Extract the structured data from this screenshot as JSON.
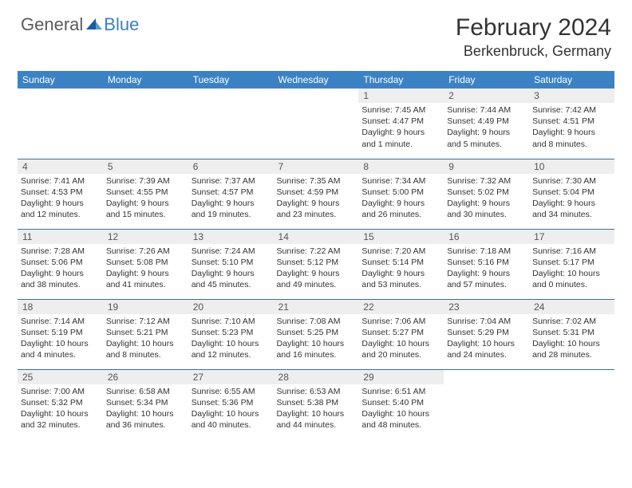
{
  "logo": {
    "text1": "General",
    "text2": "Blue"
  },
  "title": "February 2024",
  "location": "Berkenbruck, Germany",
  "colors": {
    "header_bg": "#3b82c4",
    "header_text": "#ffffff",
    "daynum_bg": "#eeeeee",
    "border": "#3b6fa0",
    "logo_gray": "#5a5a5a",
    "logo_blue": "#3b7fc4"
  },
  "weekdays": [
    "Sunday",
    "Monday",
    "Tuesday",
    "Wednesday",
    "Thursday",
    "Friday",
    "Saturday"
  ],
  "weeks": [
    [
      null,
      null,
      null,
      null,
      {
        "n": "1",
        "sr": "Sunrise: 7:45 AM",
        "ss": "Sunset: 4:47 PM",
        "d1": "Daylight: 9 hours",
        "d2": "and 1 minute."
      },
      {
        "n": "2",
        "sr": "Sunrise: 7:44 AM",
        "ss": "Sunset: 4:49 PM",
        "d1": "Daylight: 9 hours",
        "d2": "and 5 minutes."
      },
      {
        "n": "3",
        "sr": "Sunrise: 7:42 AM",
        "ss": "Sunset: 4:51 PM",
        "d1": "Daylight: 9 hours",
        "d2": "and 8 minutes."
      }
    ],
    [
      {
        "n": "4",
        "sr": "Sunrise: 7:41 AM",
        "ss": "Sunset: 4:53 PM",
        "d1": "Daylight: 9 hours",
        "d2": "and 12 minutes."
      },
      {
        "n": "5",
        "sr": "Sunrise: 7:39 AM",
        "ss": "Sunset: 4:55 PM",
        "d1": "Daylight: 9 hours",
        "d2": "and 15 minutes."
      },
      {
        "n": "6",
        "sr": "Sunrise: 7:37 AM",
        "ss": "Sunset: 4:57 PM",
        "d1": "Daylight: 9 hours",
        "d2": "and 19 minutes."
      },
      {
        "n": "7",
        "sr": "Sunrise: 7:35 AM",
        "ss": "Sunset: 4:59 PM",
        "d1": "Daylight: 9 hours",
        "d2": "and 23 minutes."
      },
      {
        "n": "8",
        "sr": "Sunrise: 7:34 AM",
        "ss": "Sunset: 5:00 PM",
        "d1": "Daylight: 9 hours",
        "d2": "and 26 minutes."
      },
      {
        "n": "9",
        "sr": "Sunrise: 7:32 AM",
        "ss": "Sunset: 5:02 PM",
        "d1": "Daylight: 9 hours",
        "d2": "and 30 minutes."
      },
      {
        "n": "10",
        "sr": "Sunrise: 7:30 AM",
        "ss": "Sunset: 5:04 PM",
        "d1": "Daylight: 9 hours",
        "d2": "and 34 minutes."
      }
    ],
    [
      {
        "n": "11",
        "sr": "Sunrise: 7:28 AM",
        "ss": "Sunset: 5:06 PM",
        "d1": "Daylight: 9 hours",
        "d2": "and 38 minutes."
      },
      {
        "n": "12",
        "sr": "Sunrise: 7:26 AM",
        "ss": "Sunset: 5:08 PM",
        "d1": "Daylight: 9 hours",
        "d2": "and 41 minutes."
      },
      {
        "n": "13",
        "sr": "Sunrise: 7:24 AM",
        "ss": "Sunset: 5:10 PM",
        "d1": "Daylight: 9 hours",
        "d2": "and 45 minutes."
      },
      {
        "n": "14",
        "sr": "Sunrise: 7:22 AM",
        "ss": "Sunset: 5:12 PM",
        "d1": "Daylight: 9 hours",
        "d2": "and 49 minutes."
      },
      {
        "n": "15",
        "sr": "Sunrise: 7:20 AM",
        "ss": "Sunset: 5:14 PM",
        "d1": "Daylight: 9 hours",
        "d2": "and 53 minutes."
      },
      {
        "n": "16",
        "sr": "Sunrise: 7:18 AM",
        "ss": "Sunset: 5:16 PM",
        "d1": "Daylight: 9 hours",
        "d2": "and 57 minutes."
      },
      {
        "n": "17",
        "sr": "Sunrise: 7:16 AM",
        "ss": "Sunset: 5:17 PM",
        "d1": "Daylight: 10 hours",
        "d2": "and 0 minutes."
      }
    ],
    [
      {
        "n": "18",
        "sr": "Sunrise: 7:14 AM",
        "ss": "Sunset: 5:19 PM",
        "d1": "Daylight: 10 hours",
        "d2": "and 4 minutes."
      },
      {
        "n": "19",
        "sr": "Sunrise: 7:12 AM",
        "ss": "Sunset: 5:21 PM",
        "d1": "Daylight: 10 hours",
        "d2": "and 8 minutes."
      },
      {
        "n": "20",
        "sr": "Sunrise: 7:10 AM",
        "ss": "Sunset: 5:23 PM",
        "d1": "Daylight: 10 hours",
        "d2": "and 12 minutes."
      },
      {
        "n": "21",
        "sr": "Sunrise: 7:08 AM",
        "ss": "Sunset: 5:25 PM",
        "d1": "Daylight: 10 hours",
        "d2": "and 16 minutes."
      },
      {
        "n": "22",
        "sr": "Sunrise: 7:06 AM",
        "ss": "Sunset: 5:27 PM",
        "d1": "Daylight: 10 hours",
        "d2": "and 20 minutes."
      },
      {
        "n": "23",
        "sr": "Sunrise: 7:04 AM",
        "ss": "Sunset: 5:29 PM",
        "d1": "Daylight: 10 hours",
        "d2": "and 24 minutes."
      },
      {
        "n": "24",
        "sr": "Sunrise: 7:02 AM",
        "ss": "Sunset: 5:31 PM",
        "d1": "Daylight: 10 hours",
        "d2": "and 28 minutes."
      }
    ],
    [
      {
        "n": "25",
        "sr": "Sunrise: 7:00 AM",
        "ss": "Sunset: 5:32 PM",
        "d1": "Daylight: 10 hours",
        "d2": "and 32 minutes."
      },
      {
        "n": "26",
        "sr": "Sunrise: 6:58 AM",
        "ss": "Sunset: 5:34 PM",
        "d1": "Daylight: 10 hours",
        "d2": "and 36 minutes."
      },
      {
        "n": "27",
        "sr": "Sunrise: 6:55 AM",
        "ss": "Sunset: 5:36 PM",
        "d1": "Daylight: 10 hours",
        "d2": "and 40 minutes."
      },
      {
        "n": "28",
        "sr": "Sunrise: 6:53 AM",
        "ss": "Sunset: 5:38 PM",
        "d1": "Daylight: 10 hours",
        "d2": "and 44 minutes."
      },
      {
        "n": "29",
        "sr": "Sunrise: 6:51 AM",
        "ss": "Sunset: 5:40 PM",
        "d1": "Daylight: 10 hours",
        "d2": "and 48 minutes."
      },
      null,
      null
    ]
  ]
}
